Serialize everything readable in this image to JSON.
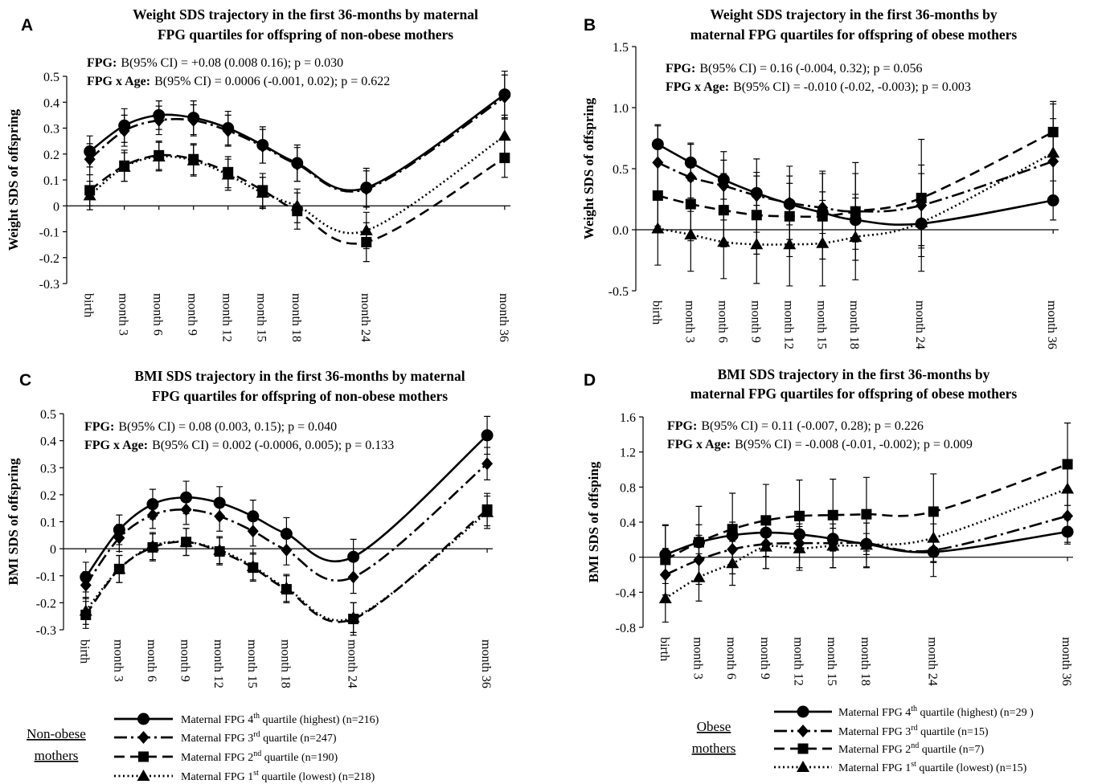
{
  "chart_data": [
    {
      "type": "line",
      "panel": "A",
      "title": [
        "Weight SDS trajectory in the first 36-months by maternal",
        "FPG quartiles for offspring of non-obese mothers"
      ],
      "y_label": "Weight SDS of offspring",
      "annotations": [
        {
          "label": "FPG:",
          "text": "B(95% CI) = +0.08 (0.008 0.16); p = 0.030"
        },
        {
          "label": "FPG x Age:",
          "text": "B(95% CI) = 0.0006 (-0.001, 0.02); p = 0.622"
        }
      ],
      "x": [
        0,
        3,
        6,
        9,
        12,
        15,
        18,
        24,
        36
      ],
      "xticks": [
        {
          "value": 0,
          "label": "birth"
        },
        {
          "value": 3,
          "label": "month 3"
        },
        {
          "value": 6,
          "label": "month 6"
        },
        {
          "value": 9,
          "label": "month 9"
        },
        {
          "value": 12,
          "label": "month 12"
        },
        {
          "value": 15,
          "label": "month 15"
        },
        {
          "value": 18,
          "label": "month 18"
        },
        {
          "value": 24,
          "label": "month 24"
        },
        {
          "value": 36,
          "label": "month 36"
        }
      ],
      "xlim": [
        -2,
        36.5
      ],
      "ylim": [
        -0.3,
        0.5
      ],
      "yticks": [
        -0.3,
        -0.2,
        -0.1,
        0,
        0.1,
        0.2,
        0.3,
        0.4,
        0.5
      ],
      "series": [
        {
          "color": "#000",
          "marker": "circle",
          "dash": "solid",
          "values": [
            0.21,
            0.31,
            0.35,
            0.34,
            0.3,
            0.235,
            0.165,
            0.07,
            0.43
          ],
          "errors": [
            0.06,
            0.065,
            0.055,
            0.065,
            0.065,
            0.07,
            0.07,
            0.075,
            0.09
          ]
        },
        {
          "color": "#000",
          "marker": "diamond",
          "dash": "dashdot",
          "values": [
            0.18,
            0.29,
            0.33,
            0.33,
            0.29,
            0.23,
            0.16,
            0.065,
            0.42
          ],
          "errors": [
            0.06,
            0.06,
            0.055,
            0.06,
            0.06,
            0.065,
            0.065,
            0.07,
            0.085
          ]
        },
        {
          "color": "#000",
          "marker": "square",
          "dash": "dashed",
          "values": [
            0.06,
            0.155,
            0.195,
            0.18,
            0.13,
            0.06,
            -0.02,
            -0.14,
            0.185
          ],
          "errors": [
            0.06,
            0.06,
            0.055,
            0.06,
            0.06,
            0.065,
            0.07,
            0.075,
            0.075
          ]
        },
        {
          "color": "#000",
          "marker": "triangle",
          "dash": "dotted",
          "values": [
            0.04,
            0.15,
            0.19,
            0.175,
            0.12,
            0.05,
            0.0,
            -0.095,
            0.27
          ],
          "errors": [
            0.055,
            0.055,
            0.055,
            0.06,
            0.06,
            0.06,
            0.065,
            0.07,
            0.08
          ]
        }
      ]
    },
    {
      "type": "line",
      "panel": "B",
      "title": [
        "Weight SDS trajectory in the first 36-months by",
        "maternal FPG quartiles for offspring of obese mothers"
      ],
      "y_label": "Weight SDS of offspring",
      "annotations": [
        {
          "label": "FPG:",
          "text": "B(95% CI) = 0.16 (-0.004, 0.32); p = 0.056"
        },
        {
          "label": "FPG x Age:",
          "text": "B(95% CI) = -0.010 (-0.02, -0.003); p = 0.003"
        }
      ],
      "x": [
        0,
        3,
        6,
        9,
        12,
        15,
        18,
        24,
        36
      ],
      "xticks": [
        {
          "value": 0,
          "label": "birth"
        },
        {
          "value": 3,
          "label": "month 3"
        },
        {
          "value": 6,
          "label": "month 6"
        },
        {
          "value": 9,
          "label": "month 9"
        },
        {
          "value": 12,
          "label": "month 12"
        },
        {
          "value": 15,
          "label": "month 15"
        },
        {
          "value": 18,
          "label": "month 18"
        },
        {
          "value": 24,
          "label": "month 24"
        },
        {
          "value": 36,
          "label": "month 36"
        }
      ],
      "xlim": [
        -2,
        36.5
      ],
      "ylim": [
        -0.5,
        1.5
      ],
      "yticks": [
        -0.5,
        {
          "value": 0,
          "label": "0.0"
        },
        0.5,
        {
          "value": 1,
          "label": "1.0"
        },
        1.5
      ],
      "series": [
        {
          "color": "#000",
          "marker": "circle",
          "dash": "solid",
          "values": [
            0.7,
            0.55,
            0.41,
            0.3,
            0.21,
            0.14,
            0.08,
            0.05,
            0.24
          ],
          "errors": [
            0.16,
            0.15,
            0.16,
            0.17,
            0.17,
            0.17,
            0.18,
            0.2,
            0.16
          ]
        },
        {
          "color": "#000",
          "marker": "diamond",
          "dash": "dashdot",
          "values": [
            0.55,
            0.43,
            0.36,
            0.28,
            0.22,
            0.18,
            0.15,
            0.2,
            0.56
          ],
          "errors": [
            0.3,
            0.28,
            0.28,
            0.3,
            0.3,
            0.3,
            0.31,
            0.33,
            0.35
          ]
        },
        {
          "color": "#000",
          "marker": "square",
          "dash": "dashed",
          "values": [
            0.28,
            0.21,
            0.16,
            0.12,
            0.11,
            0.11,
            0.15,
            0.26,
            0.8
          ],
          "errors": [
            0.25,
            0.3,
            0.3,
            0.32,
            0.33,
            0.35,
            0.4,
            0.48,
            0.25
          ]
        },
        {
          "color": "#000",
          "marker": "triangle",
          "dash": "dotted",
          "values": [
            0.01,
            -0.04,
            -0.1,
            -0.12,
            -0.12,
            -0.11,
            -0.06,
            0.06,
            0.63
          ],
          "errors": [
            0.3,
            0.3,
            0.3,
            0.32,
            0.34,
            0.35,
            0.35,
            0.4,
            0.4
          ]
        }
      ]
    },
    {
      "type": "line",
      "panel": "C",
      "title": [
        "BMI SDS trajectory in the first 36-months by maternal",
        "FPG quartiles for offspring of non-obese mothers"
      ],
      "y_label": "BMI SDS of offspring",
      "annotations": [
        {
          "label": "FPG:",
          "text": "B(95% CI) = 0.08 (0.003, 0.15); p = 0.040"
        },
        {
          "label": "FPG x Age:",
          "text": "B(95% CI) = 0.002 (-0.0006, 0.005); p = 0.133"
        }
      ],
      "x": [
        0,
        3,
        6,
        9,
        12,
        15,
        18,
        24,
        36
      ],
      "xticks": [
        {
          "value": 0,
          "label": "birth"
        },
        {
          "value": 3,
          "label": "month 3"
        },
        {
          "value": 6,
          "label": "month 6"
        },
        {
          "value": 9,
          "label": "month 9"
        },
        {
          "value": 12,
          "label": "month 12"
        },
        {
          "value": 15,
          "label": "month 15"
        },
        {
          "value": 18,
          "label": "month 18"
        },
        {
          "value": 24,
          "label": "month 24"
        },
        {
          "value": 36,
          "label": "month 36"
        }
      ],
      "xlim": [
        -2,
        36.5
      ],
      "ylim": [
        -0.3,
        0.5
      ],
      "yticks": [
        -0.3,
        -0.2,
        -0.1,
        0,
        0.1,
        0.2,
        0.3,
        0.4,
        0.5
      ],
      "series": [
        {
          "color": "#000",
          "marker": "circle",
          "dash": "solid",
          "values": [
            -0.105,
            0.07,
            0.165,
            0.19,
            0.17,
            0.12,
            0.055,
            -0.03,
            0.42
          ],
          "errors": [
            0.055,
            0.055,
            0.055,
            0.06,
            0.06,
            0.06,
            0.06,
            0.065,
            0.07
          ]
        },
        {
          "color": "#000",
          "marker": "diamond",
          "dash": "dashdot",
          "values": [
            -0.135,
            0.04,
            0.125,
            0.145,
            0.12,
            0.065,
            -0.005,
            -0.105,
            0.315
          ],
          "errors": [
            0.05,
            0.05,
            0.05,
            0.055,
            0.055,
            0.055,
            0.055,
            0.06,
            0.06
          ]
        },
        {
          "color": "#000",
          "marker": "square",
          "dash": "dashed",
          "values": [
            -0.245,
            -0.075,
            0.005,
            0.025,
            -0.01,
            -0.07,
            -0.15,
            -0.26,
            0.145
          ],
          "errors": [
            0.05,
            0.05,
            0.05,
            0.05,
            0.05,
            0.05,
            0.05,
            0.06,
            0.06
          ]
        },
        {
          "color": "#000",
          "marker": "triangle",
          "dash": "dotted",
          "values": [
            -0.23,
            -0.075,
            0.01,
            0.025,
            -0.005,
            -0.065,
            -0.145,
            -0.255,
            0.135
          ],
          "errors": [
            0.05,
            0.05,
            0.05,
            0.05,
            0.05,
            0.05,
            0.05,
            0.055,
            0.06
          ]
        }
      ]
    },
    {
      "type": "line",
      "panel": "D",
      "title": [
        "BMI SDS trajectory in the first 36-months by",
        "maternal FPG quartiles for offspring of obese mothers"
      ],
      "y_label": "BMI SDS of offsping",
      "annotations": [
        {
          "label": "FPG:",
          "text": "B(95% CI) = 0.11 (-0.007, 0.28); p = 0.226"
        },
        {
          "label": "FPG x Age:",
          "text": "B(95% CI) = -0.008 (-0.01, -0.002); p = 0.009"
        }
      ],
      "x": [
        0,
        3,
        6,
        9,
        12,
        15,
        18,
        24,
        36
      ],
      "xticks": [
        {
          "value": 0,
          "label": "birth"
        },
        {
          "value": 3,
          "label": "month 3"
        },
        {
          "value": 6,
          "label": "month 6"
        },
        {
          "value": 9,
          "label": "month 9"
        },
        {
          "value": 12,
          "label": "month 12"
        },
        {
          "value": 15,
          "label": "month 15"
        },
        {
          "value": 18,
          "label": "month 18"
        },
        {
          "value": 24,
          "label": "month 24"
        },
        {
          "value": 36,
          "label": "month 36"
        }
      ],
      "xlim": [
        -2,
        36.5
      ],
      "ylim": [
        -0.8,
        1.6
      ],
      "yticks": [
        -0.8,
        -0.4,
        0,
        0.4,
        0.8,
        1.2,
        1.6
      ],
      "series": [
        {
          "color": "#000",
          "marker": "circle",
          "dash": "solid",
          "values": [
            0.03,
            0.17,
            0.25,
            0.28,
            0.26,
            0.21,
            0.15,
            0.06,
            0.29
          ],
          "errors": [
            0.33,
            0.2,
            0.15,
            0.13,
            0.12,
            0.12,
            0.12,
            0.12,
            0.14
          ]
        },
        {
          "color": "#000",
          "marker": "diamond",
          "dash": "dashdot",
          "values": [
            -0.2,
            -0.03,
            0.09,
            0.15,
            0.16,
            0.16,
            0.16,
            0.08,
            0.47
          ],
          "errors": [
            0.3,
            0.28,
            0.28,
            0.28,
            0.28,
            0.28,
            0.28,
            0.3,
            0.3
          ]
        },
        {
          "color": "#000",
          "marker": "square",
          "dash": "dashed",
          "values": [
            -0.03,
            0.17,
            0.32,
            0.42,
            0.47,
            0.48,
            0.49,
            0.52,
            1.06
          ],
          "errors": [
            0.4,
            0.41,
            0.41,
            0.41,
            0.41,
            0.41,
            0.42,
            0.43,
            0.47
          ]
        },
        {
          "color": "#000",
          "marker": "triangle",
          "dash": "dotted",
          "values": [
            -0.47,
            -0.23,
            -0.07,
            0.12,
            0.1,
            0.13,
            0.14,
            0.22,
            0.78
          ],
          "errors": [
            0.27,
            0.27,
            0.25,
            0.25,
            0.25,
            0.25,
            0.25,
            0.27,
            0.3
          ]
        }
      ]
    }
  ],
  "legends": [
    {
      "title": [
        "Non-obese",
        "mothers"
      ],
      "entries": [
        {
          "pre": "Maternal FPG 4",
          "sup": "th",
          "post": " quartile (highest) (n=216)"
        },
        {
          "pre": "Maternal FPG 3",
          "sup": "rd",
          "post": " quartile (n=247)"
        },
        {
          "pre": "Maternal FPG 2",
          "sup": "nd",
          "post": " quartile (n=190)"
        },
        {
          "pre": "Maternal FPG 1",
          "sup": "st",
          "post": " quartile (lowest) (n=218)"
        }
      ]
    },
    {
      "title": [
        "Obese",
        "mothers"
      ],
      "entries": [
        {
          "pre": "Maternal FPG 4",
          "sup": "th",
          "post": " quartile (highest) (n=29 )"
        },
        {
          "pre": "Maternal FPG 3",
          "sup": "rd",
          "post": " quartile (n=15)"
        },
        {
          "pre": "Maternal FPG 2",
          "sup": "nd",
          "post": " quartile (n=7)"
        },
        {
          "pre": "Maternal FPG 1",
          "sup": "st",
          "post": " quartile (lowest) (n=15)"
        }
      ]
    }
  ]
}
